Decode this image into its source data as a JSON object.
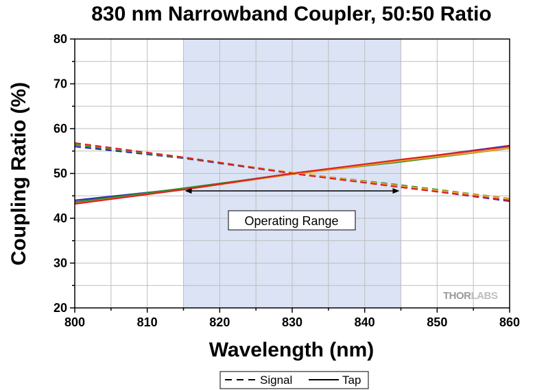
{
  "chart_data": {
    "type": "line",
    "title": "830 nm Narrowband Coupler, 50:50 Ratio",
    "xlabel": "Wavelength (nm)",
    "ylabel": "Coupling Ratio (%)",
    "xlim": [
      800,
      860
    ],
    "ylim": [
      20,
      80
    ],
    "xticks": [
      800,
      810,
      820,
      830,
      840,
      850,
      860
    ],
    "yticks": [
      20,
      30,
      40,
      50,
      60,
      70,
      80
    ],
    "grid": true,
    "operating_range": {
      "x": [
        815,
        845
      ],
      "label": "Operating Range"
    },
    "legend": {
      "position": "bottom-center",
      "entries": [
        {
          "label": "Signal",
          "style": "dashed"
        },
        {
          "label": "Tap",
          "style": "solid"
        }
      ]
    },
    "series": [
      {
        "role": "tap",
        "color": "#2a2ab8",
        "dashed": false,
        "x": [
          800,
          815,
          830,
          845,
          860
        ],
        "y": [
          44.0,
          46.6,
          50.0,
          53.0,
          56.2
        ]
      },
      {
        "role": "tap",
        "color": "#2e8b2e",
        "dashed": false,
        "x": [
          800,
          815,
          830,
          845,
          860
        ],
        "y": [
          43.6,
          46.7,
          49.9,
          52.6,
          55.6
        ]
      },
      {
        "role": "tap",
        "color": "#e8a020",
        "dashed": false,
        "x": [
          800,
          815,
          830,
          845,
          860
        ],
        "y": [
          43.3,
          46.4,
          49.8,
          52.8,
          55.6
        ]
      },
      {
        "role": "tap",
        "color": "#e02020",
        "dashed": false,
        "x": [
          800,
          815,
          830,
          845,
          860
        ],
        "y": [
          43.2,
          46.4,
          50.0,
          53.1,
          56.0
        ]
      },
      {
        "role": "signal",
        "color": "#2a2ab8",
        "dashed": true,
        "x": [
          800,
          815,
          830,
          845,
          860
        ],
        "y": [
          56.0,
          53.4,
          50.0,
          47.0,
          43.8
        ]
      },
      {
        "role": "signal",
        "color": "#2e8b2e",
        "dashed": true,
        "x": [
          800,
          815,
          830,
          845,
          860
        ],
        "y": [
          56.4,
          53.5,
          50.1,
          47.4,
          44.4
        ]
      },
      {
        "role": "signal",
        "color": "#e8a020",
        "dashed": true,
        "x": [
          800,
          815,
          830,
          845,
          860
        ],
        "y": [
          56.7,
          53.6,
          50.2,
          47.2,
          44.4
        ]
      },
      {
        "role": "signal",
        "color": "#e02020",
        "dashed": true,
        "x": [
          800,
          815,
          830,
          845,
          860
        ],
        "y": [
          56.8,
          53.6,
          50.0,
          46.9,
          44.0
        ]
      }
    ]
  },
  "watermark": {
    "text_thor": "THOR",
    "text_labs": "LABS"
  },
  "colors": {
    "operating_fill": "#dbe3f4",
    "grid": "#bdbdbd",
    "axis": "#000000"
  }
}
